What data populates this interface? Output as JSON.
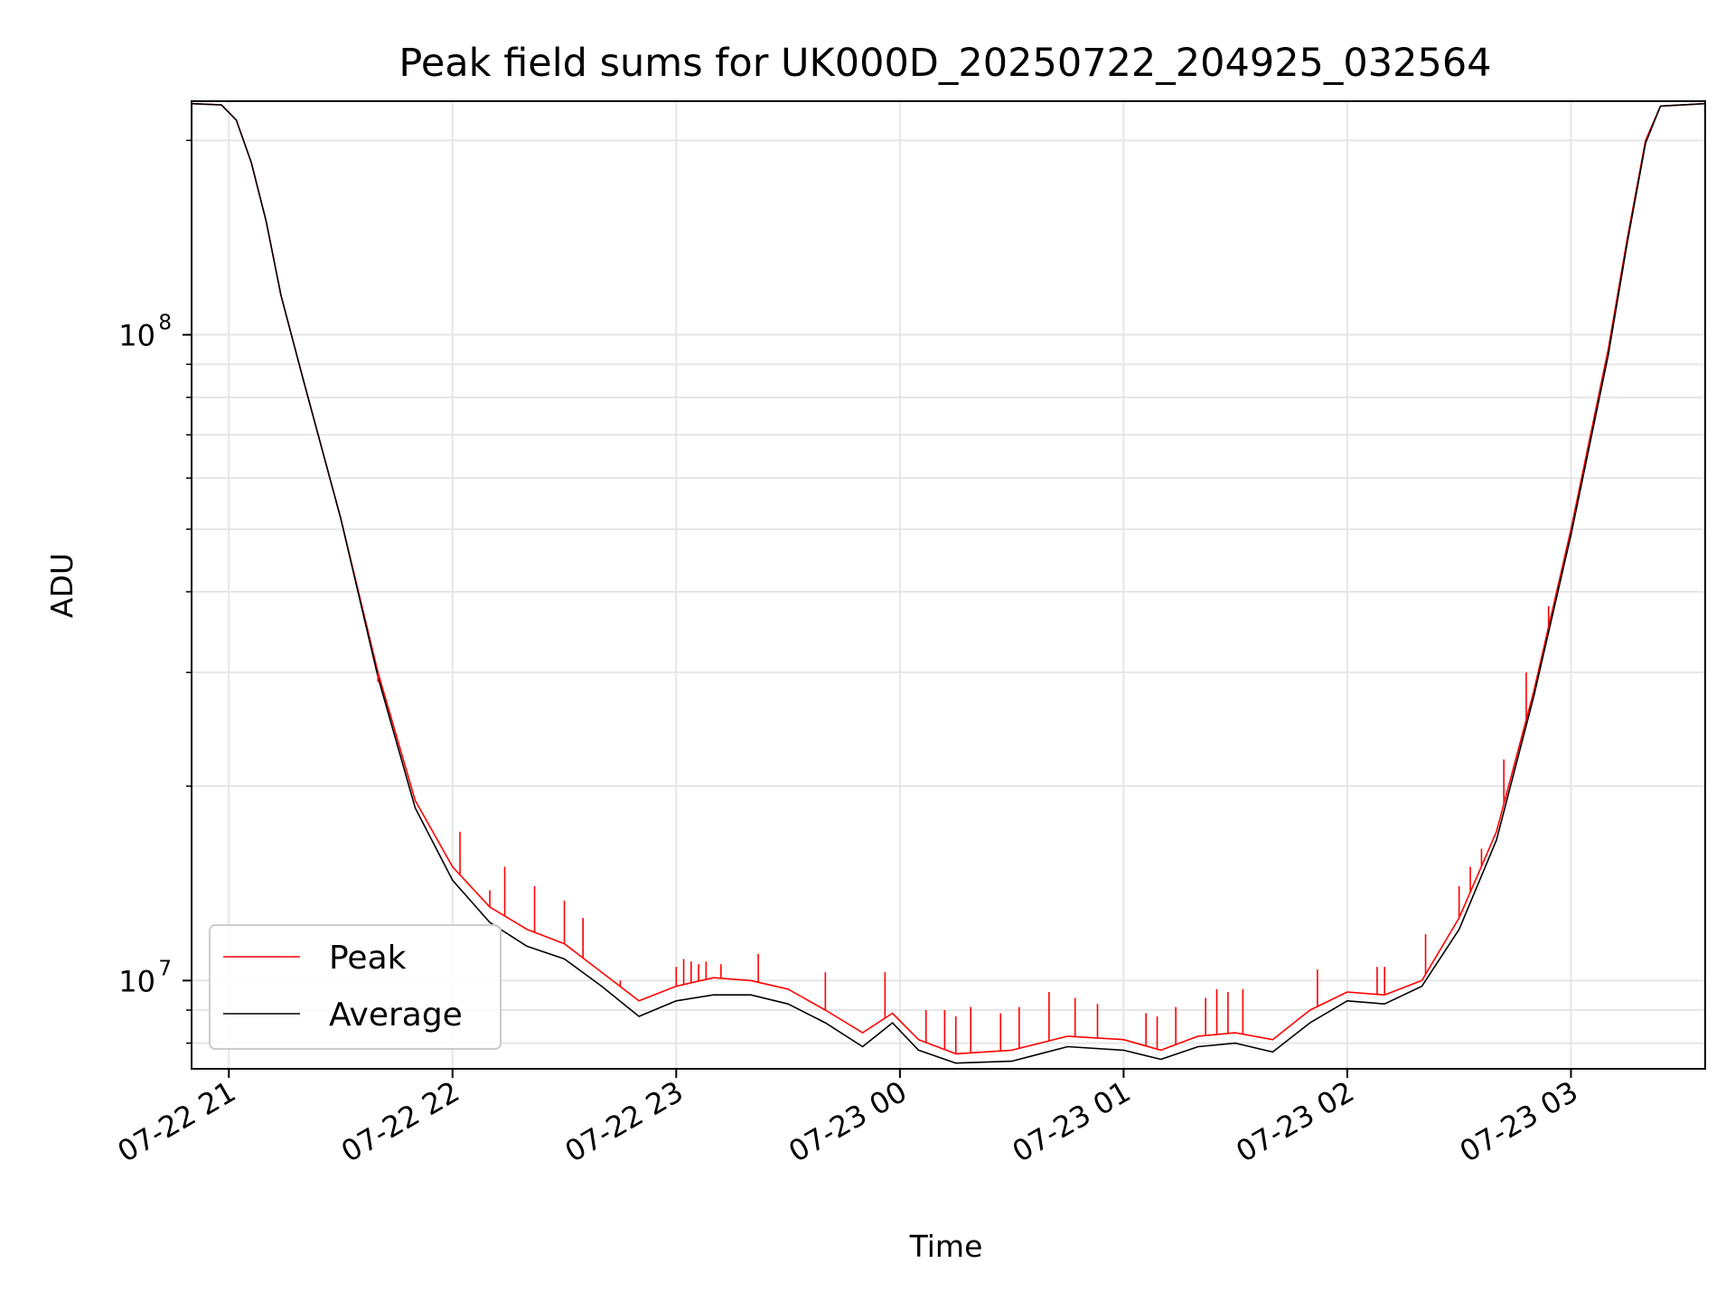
{
  "chart_data": {
    "type": "line",
    "title": "Peak field sums for UK000D_20250722_204925_032564",
    "xlabel": "Time",
    "ylabel": "ADU",
    "yscale": "log",
    "ylim": [
      7300000,
      230000000
    ],
    "xlim": [
      "2025-07-22 20:50",
      "2025-07-23 03:36"
    ],
    "grid": true,
    "legend_position": "lower-left",
    "x_ticks": [
      "2025-07-22 21:00",
      "2025-07-22 22:00",
      "2025-07-22 23:00",
      "2025-07-23 00:00",
      "2025-07-23 01:00",
      "2025-07-23 02:00",
      "2025-07-23 03:00"
    ],
    "x_tick_labels": [
      "07-22 21",
      "07-22 22",
      "07-22 23",
      "07-23 00",
      "07-23 01",
      "07-23 02",
      "07-23 03"
    ],
    "y_major_ticks": [
      10000000,
      100000000
    ],
    "y_major_tick_labels": [
      {
        "base": "10",
        "exp": "7"
      },
      {
        "base": "10",
        "exp": "8"
      }
    ],
    "y_minor_ticks": [
      8000000,
      9000000,
      20000000,
      30000000,
      40000000,
      50000000,
      60000000,
      70000000,
      80000000,
      90000000,
      200000000
    ],
    "series": [
      {
        "name": "Peak",
        "color": "#ff0000",
        "points": [
          [
            "2025-07-22 20:50",
            228000000
          ],
          [
            "2025-07-22 20:58",
            227000000
          ],
          [
            "2025-07-22 21:02",
            215000000
          ],
          [
            "2025-07-22 21:06",
            185000000
          ],
          [
            "2025-07-22 21:10",
            150000000
          ],
          [
            "2025-07-22 21:14",
            115000000
          ],
          [
            "2025-07-22 21:20",
            85000000
          ],
          [
            "2025-07-22 21:30",
            52000000
          ],
          [
            "2025-07-22 21:40",
            30000000
          ],
          [
            "2025-07-22 21:50",
            19000000
          ],
          [
            "2025-07-22 22:00",
            15000000
          ],
          [
            "2025-07-22 22:10",
            13000000
          ],
          [
            "2025-07-22 22:20",
            12000000
          ],
          [
            "2025-07-22 22:30",
            11400000
          ],
          [
            "2025-07-22 22:40",
            10300000
          ],
          [
            "2025-07-22 22:50",
            9300000
          ],
          [
            "2025-07-22 23:00",
            9800000
          ],
          [
            "2025-07-22 23:10",
            10100000
          ],
          [
            "2025-07-22 23:20",
            10000000
          ],
          [
            "2025-07-22 23:30",
            9700000
          ],
          [
            "2025-07-22 23:40",
            9000000
          ],
          [
            "2025-07-22 23:50",
            8300000
          ],
          [
            "2025-07-22 23:58",
            8900000
          ],
          [
            "2025-07-23 00:05",
            8100000
          ],
          [
            "2025-07-23 00:15",
            7700000
          ],
          [
            "2025-07-23 00:30",
            7800000
          ],
          [
            "2025-07-23 00:45",
            8200000
          ],
          [
            "2025-07-23 01:00",
            8100000
          ],
          [
            "2025-07-23 01:10",
            7800000
          ],
          [
            "2025-07-23 01:20",
            8200000
          ],
          [
            "2025-07-23 01:30",
            8300000
          ],
          [
            "2025-07-23 01:40",
            8100000
          ],
          [
            "2025-07-23 01:50",
            9000000
          ],
          [
            "2025-07-23 02:00",
            9600000
          ],
          [
            "2025-07-23 02:10",
            9500000
          ],
          [
            "2025-07-23 02:20",
            10000000
          ],
          [
            "2025-07-23 02:30",
            12500000
          ],
          [
            "2025-07-23 02:40",
            17000000
          ],
          [
            "2025-07-23 02:50",
            28000000
          ],
          [
            "2025-07-23 03:00",
            50000000
          ],
          [
            "2025-07-23 03:10",
            95000000
          ],
          [
            "2025-07-23 03:15",
            140000000
          ],
          [
            "2025-07-23 03:20",
            200000000
          ],
          [
            "2025-07-23 03:24",
            226000000
          ],
          [
            "2025-07-23 03:36",
            228000000
          ]
        ],
        "spikes": [
          [
            "2025-07-22 21:40",
            29000000
          ],
          [
            "2025-07-22 21:45",
            24000000
          ],
          [
            "2025-07-22 22:02",
            17000000
          ],
          [
            "2025-07-22 22:10",
            13800000
          ],
          [
            "2025-07-22 22:14",
            15000000
          ],
          [
            "2025-07-22 22:22",
            14000000
          ],
          [
            "2025-07-22 22:30",
            13300000
          ],
          [
            "2025-07-22 22:35",
            12500000
          ],
          [
            "2025-07-22 22:45",
            10000000
          ],
          [
            "2025-07-22 23:00",
            10500000
          ],
          [
            "2025-07-22 23:02",
            10800000
          ],
          [
            "2025-07-22 23:04",
            10700000
          ],
          [
            "2025-07-22 23:06",
            10600000
          ],
          [
            "2025-07-22 23:08",
            10700000
          ],
          [
            "2025-07-22 23:12",
            10600000
          ],
          [
            "2025-07-22 23:22",
            11000000
          ],
          [
            "2025-07-22 23:40",
            10300000
          ],
          [
            "2025-07-22 23:56",
            10300000
          ],
          [
            "2025-07-23 00:07",
            9000000
          ],
          [
            "2025-07-23 00:12",
            9000000
          ],
          [
            "2025-07-23 00:15",
            8800000
          ],
          [
            "2025-07-23 00:19",
            9100000
          ],
          [
            "2025-07-23 00:27",
            8900000
          ],
          [
            "2025-07-23 00:32",
            9100000
          ],
          [
            "2025-07-23 00:40",
            9600000
          ],
          [
            "2025-07-23 00:47",
            9400000
          ],
          [
            "2025-07-23 00:53",
            9200000
          ],
          [
            "2025-07-23 01:06",
            8900000
          ],
          [
            "2025-07-23 01:09",
            8800000
          ],
          [
            "2025-07-23 01:14",
            9100000
          ],
          [
            "2025-07-23 01:22",
            9400000
          ],
          [
            "2025-07-23 01:25",
            9700000
          ],
          [
            "2025-07-23 01:28",
            9600000
          ],
          [
            "2025-07-23 01:32",
            9700000
          ],
          [
            "2025-07-23 01:52",
            10400000
          ],
          [
            "2025-07-23 02:08",
            10500000
          ],
          [
            "2025-07-23 02:10",
            10500000
          ],
          [
            "2025-07-23 02:21",
            11800000
          ],
          [
            "2025-07-23 02:30",
            14000000
          ],
          [
            "2025-07-23 02:33",
            15000000
          ],
          [
            "2025-07-23 02:36",
            16000000
          ],
          [
            "2025-07-23 02:42",
            22000000
          ],
          [
            "2025-07-23 02:48",
            30000000
          ],
          [
            "2025-07-23 02:54",
            38000000
          ]
        ]
      },
      {
        "name": "Average",
        "color": "#000000",
        "points": [
          [
            "2025-07-22 20:50",
            228000000
          ],
          [
            "2025-07-22 20:58",
            227000000
          ],
          [
            "2025-07-22 21:02",
            215000000
          ],
          [
            "2025-07-22 21:06",
            185000000
          ],
          [
            "2025-07-22 21:10",
            150000000
          ],
          [
            "2025-07-22 21:14",
            115000000
          ],
          [
            "2025-07-22 21:20",
            85000000
          ],
          [
            "2025-07-22 21:30",
            52000000
          ],
          [
            "2025-07-22 21:40",
            29500000
          ],
          [
            "2025-07-22 21:50",
            18500000
          ],
          [
            "2025-07-22 22:00",
            14300000
          ],
          [
            "2025-07-22 22:10",
            12300000
          ],
          [
            "2025-07-22 22:20",
            11300000
          ],
          [
            "2025-07-22 22:30",
            10800000
          ],
          [
            "2025-07-22 22:40",
            9800000
          ],
          [
            "2025-07-22 22:50",
            8800000
          ],
          [
            "2025-07-22 23:00",
            9300000
          ],
          [
            "2025-07-22 23:10",
            9500000
          ],
          [
            "2025-07-22 23:20",
            9500000
          ],
          [
            "2025-07-22 23:30",
            9200000
          ],
          [
            "2025-07-22 23:40",
            8600000
          ],
          [
            "2025-07-22 23:50",
            7900000
          ],
          [
            "2025-07-22 23:58",
            8600000
          ],
          [
            "2025-07-23 00:05",
            7800000
          ],
          [
            "2025-07-23 00:15",
            7450000
          ],
          [
            "2025-07-23 00:30",
            7500000
          ],
          [
            "2025-07-23 00:45",
            7900000
          ],
          [
            "2025-07-23 01:00",
            7800000
          ],
          [
            "2025-07-23 01:10",
            7550000
          ],
          [
            "2025-07-23 01:20",
            7900000
          ],
          [
            "2025-07-23 01:30",
            8000000
          ],
          [
            "2025-07-23 01:40",
            7750000
          ],
          [
            "2025-07-23 01:50",
            8600000
          ],
          [
            "2025-07-23 02:00",
            9300000
          ],
          [
            "2025-07-23 02:10",
            9200000
          ],
          [
            "2025-07-23 02:20",
            9800000
          ],
          [
            "2025-07-23 02:30",
            12000000
          ],
          [
            "2025-07-23 02:40",
            16500000
          ],
          [
            "2025-07-23 02:50",
            27500000
          ],
          [
            "2025-07-23 03:00",
            49000000
          ],
          [
            "2025-07-23 03:10",
            93000000
          ],
          [
            "2025-07-23 03:15",
            138000000
          ],
          [
            "2025-07-23 03:20",
            198000000
          ],
          [
            "2025-07-23 03:24",
            226000000
          ],
          [
            "2025-07-23 03:36",
            228000000
          ]
        ]
      }
    ]
  }
}
